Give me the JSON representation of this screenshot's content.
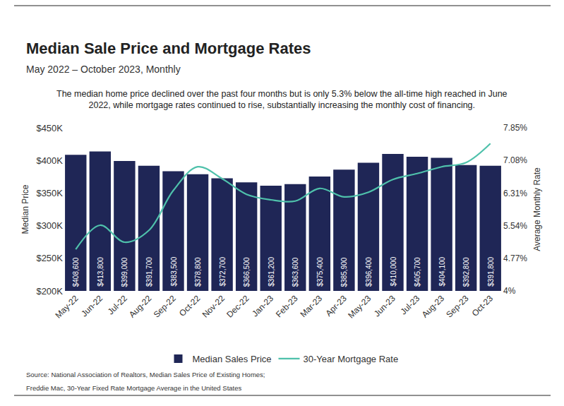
{
  "chart_data": {
    "type": "bar",
    "title": "Median Sale Price and Mortgage Rates",
    "subtitle": "May 2022 – October 2023, Monthly",
    "description": [
      "The median home price declined over the past four months but is only 5.3% below the all-time high reached in June",
      "2022, while mortgage rates continued to rise, substantially increasing the monthly cost of financing."
    ],
    "source": [
      "Source: National Association of Realtors, Median Sales Price of Existing Homes;",
      "Freddie Mac, 30-Year Fixed Rate Mortgage Average in the United States"
    ],
    "categories": [
      "May-22",
      "Jun-22",
      "Jul-22",
      "Aug-22",
      "Sep-22",
      "Oct-22",
      "Nov-22",
      "Dec-22",
      "Jan-23",
      "Feb-23",
      "Mar-23",
      "Apr-23",
      "May-23",
      "Jun-23",
      "Jul-23",
      "Aug-23",
      "Sep-23",
      "Oct-23"
    ],
    "series": [
      {
        "name": "Median Sales Price",
        "type": "bar",
        "color": "#1f2656",
        "values": [
          408600,
          413800,
          399000,
          391700,
          383500,
          378800,
          372700,
          366500,
          361200,
          363600,
          375400,
          385900,
          396400,
          410000,
          405700,
          404100,
          392800,
          391800
        ],
        "value_labels": [
          "$408,600",
          "$413,800",
          "$399,000",
          "$391,700",
          "$383,500",
          "$378,800",
          "$372,700",
          "$366,500",
          "$361,200",
          "$363,600",
          "$375,400",
          "$385,900",
          "$396,400",
          "$410,000",
          "$405,700",
          "$404,100",
          "$392,800",
          "$391,800"
        ]
      },
      {
        "name": "30-Year Mortgage Rate",
        "type": "line",
        "color": "#4fc1ab",
        "axis": "y2",
        "line_style": "solid",
        "values": [
          4.98,
          5.55,
          5.15,
          5.43,
          6.37,
          6.93,
          6.65,
          6.28,
          6.15,
          6.12,
          6.42,
          6.22,
          6.33,
          6.63,
          6.77,
          6.93,
          7.03,
          7.48
        ]
      }
    ],
    "data_labels": true,
    "ylabel": "Median Price",
    "y2label": "Average Monthly Rate",
    "ylim": [
      200000,
      450000
    ],
    "yticks": [
      {
        "value": 200000,
        "label": "$200K"
      },
      {
        "value": 250000,
        "label": "$250K"
      },
      {
        "value": 300000,
        "label": "$300K"
      },
      {
        "value": 350000,
        "label": "$350K"
      },
      {
        "value": 400000,
        "label": "$400K"
      },
      {
        "value": 450000,
        "label": "$450K"
      }
    ],
    "y2lim": [
      4,
      7.85
    ],
    "y2ticks": [
      {
        "value": 4,
        "label": "4%"
      },
      {
        "value": 4.77,
        "label": "4.77%"
      },
      {
        "value": 5.54,
        "label": "5.54%"
      },
      {
        "value": 6.31,
        "label": "6.31%"
      },
      {
        "value": 7.08,
        "label": "7.08%"
      },
      {
        "value": 7.85,
        "label": "7.85%"
      }
    ],
    "grid": false,
    "legend": "bottom"
  }
}
